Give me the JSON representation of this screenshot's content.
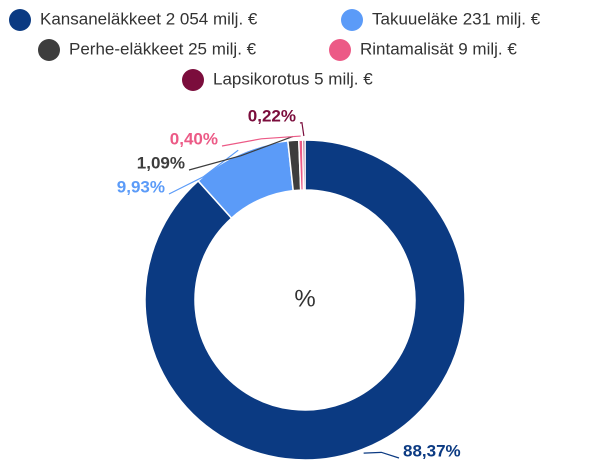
{
  "chart_data": {
    "type": "pie",
    "donut": true,
    "center_label": "%",
    "categories": [
      "Kansaneläkkeet 2 054 milj. €",
      "Takuueläke 231 milj. €",
      "Perhe-eläkkeet 25 milj. €",
      "Rintamalisät 9 milj. €",
      "Lapsikorotus 5 milj. €"
    ],
    "values": [
      88.37,
      9.93,
      1.09,
      0.4,
      0.22
    ],
    "value_labels": [
      "88,37%",
      "9,93%",
      "1,09%",
      "0,40%",
      "0,22%"
    ],
    "colors": [
      "#0b3a82",
      "#5b9bf8",
      "#3d3d3d",
      "#ec5a86",
      "#7b0d3c"
    ]
  }
}
